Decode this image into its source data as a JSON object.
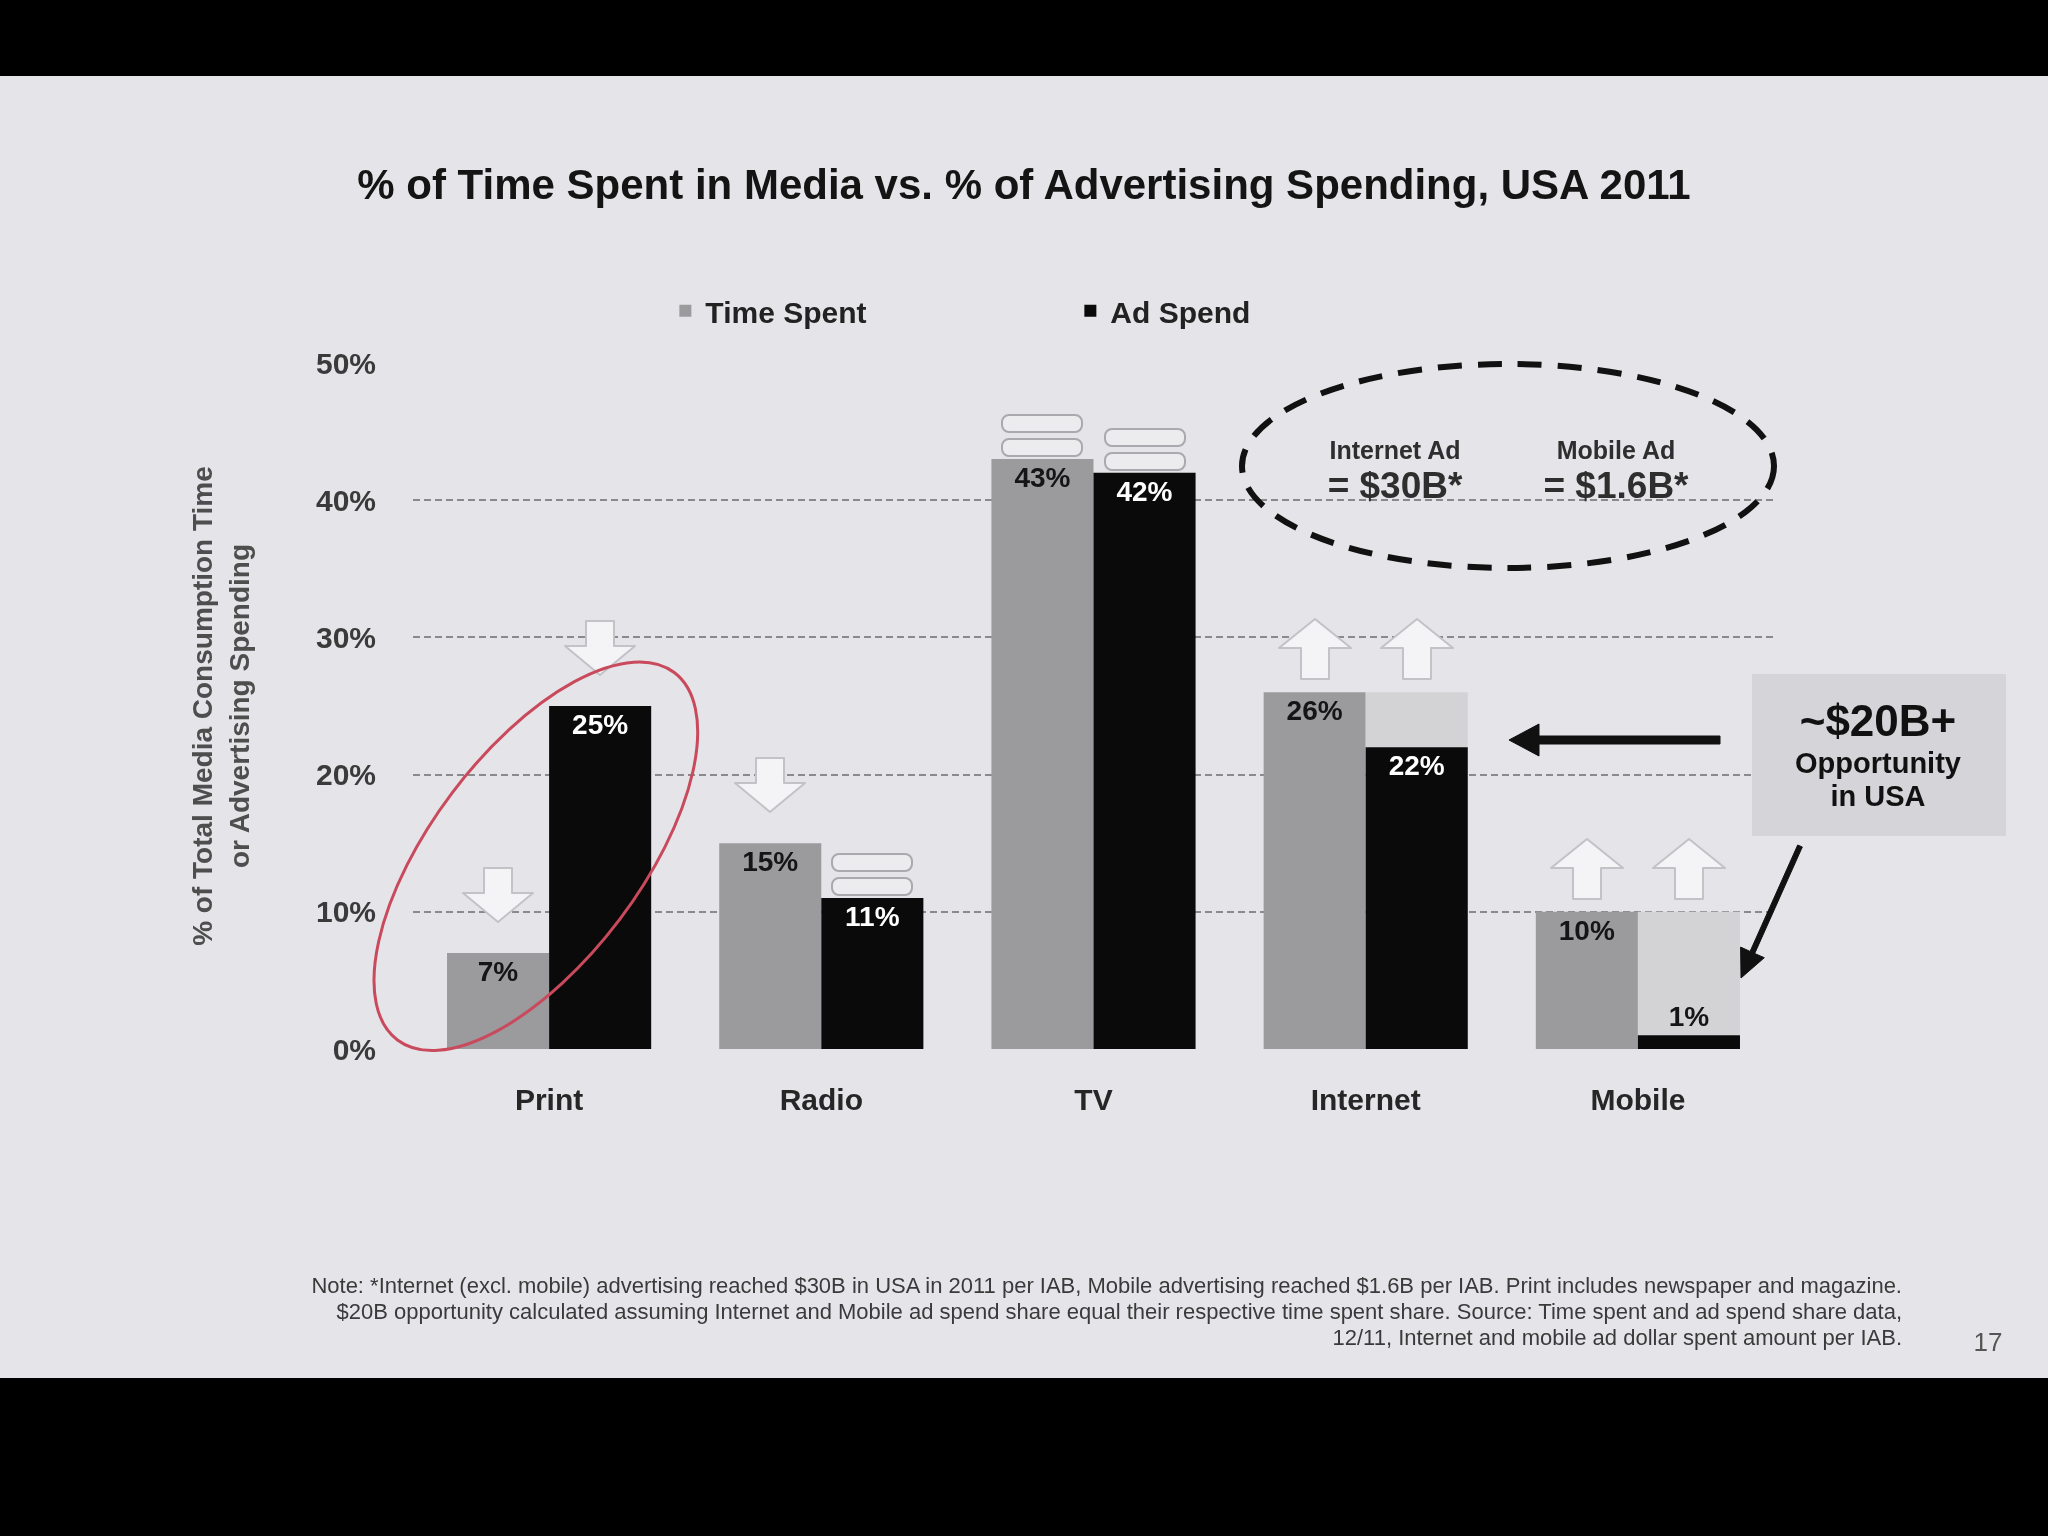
{
  "chart_data": {
    "type": "bar",
    "title": "% of Time Spent in Media vs. % of Advertising Spending, USA 2011",
    "ylabel": "% of Total Media Consumption Time or Advertising Spending",
    "categories": [
      "Print",
      "Radio",
      "TV",
      "Internet",
      "Mobile"
    ],
    "series": [
      {
        "name": "Time Spent",
        "color": "#9b9b9e",
        "values": [
          7,
          15,
          43,
          26,
          10
        ],
        "value_labels": [
          "7%",
          "15%",
          "43%",
          "26%",
          "10%"
        ]
      },
      {
        "color": "#d3d3d6",
        "values": [
          null,
          null,
          null,
          4,
          9
        ],
        "base": [
          null,
          null,
          null,
          22,
          1
        ]
      },
      {
        "name": "Ad Spend",
        "color": "#0a0a0a",
        "values": [
          25,
          11,
          42,
          22,
          1
        ],
        "value_labels": [
          "25%",
          "11%",
          "42%",
          "22%",
          "1%"
        ]
      }
    ],
    "ylim": [
      0,
      50
    ],
    "yticks": [
      {
        "value": 0,
        "label": "0%"
      },
      {
        "value": 10,
        "label": "10%"
      },
      {
        "value": 20,
        "label": "20%"
      },
      {
        "value": 30,
        "label": "30%"
      },
      {
        "value": 40,
        "label": "40%"
      },
      {
        "value": 50,
        "label": "50%"
      }
    ],
    "grid": "y",
    "legend": "top",
    "annotations": [
      "Internet Ad\n= $30B*",
      "Mobile Ad\n= $1.6B*",
      "~$20B+\nOpportunity\nin USA",
      "Note: *Internet (excl. mobile) advertising reached $30B in USA in 2011 per IAB, Mobile advertising reached $1.6B per IAB. Print includes newspaper and magazine. $20B opportunity calculated assuming Internet and Mobile ad spend share equal their respective time spent share. Source: Time spent and ad spend share data, 12/11, Internet and mobile ad dollar spent amount per IAB.",
      "17"
    ]
  }
}
